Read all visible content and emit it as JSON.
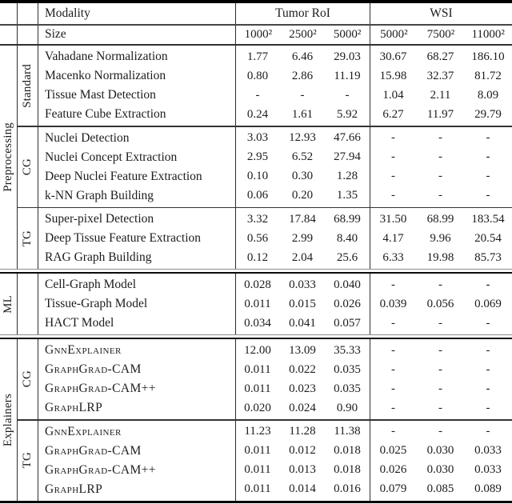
{
  "header": {
    "modality_label": "Modality",
    "size_label": "Size",
    "tumor_roi_label": "Tumor RoI",
    "wsi_label": "WSI",
    "sizes": [
      "1000²",
      "2500²",
      "5000²",
      "5000²",
      "7500²",
      "11000²"
    ]
  },
  "sections": [
    {
      "name": "Preprocessing",
      "bands": [
        {
          "group": "Standard",
          "rows": [
            {
              "label": "Vahadane Normalization",
              "values": [
                "1.77",
                "6.46",
                "29.03",
                "30.67",
                "68.27",
                "186.10"
              ]
            },
            {
              "label": "Macenko Normalization",
              "values": [
                "0.80",
                "2.86",
                "11.19",
                "15.98",
                "32.37",
                "81.72"
              ]
            },
            {
              "label": "Tissue Mast Detection",
              "values": [
                "-",
                "-",
                "-",
                "1.04",
                "2.11",
                "8.09"
              ]
            },
            {
              "label": "Feature Cube Extraction",
              "values": [
                "0.24",
                "1.61",
                "5.92",
                "6.27",
                "11.97",
                "29.79"
              ]
            }
          ]
        },
        {
          "group": "CG",
          "rows": [
            {
              "label": "Nuclei Detection",
              "values": [
                "3.03",
                "12.93",
                "47.66",
                "-",
                "-",
                "-"
              ]
            },
            {
              "label": "Nuclei Concept Extraction",
              "values": [
                "2.95",
                "6.52",
                "27.94",
                "-",
                "-",
                "-"
              ]
            },
            {
              "label": "Deep Nuclei Feature Extraction",
              "values": [
                "0.10",
                "0.30",
                "1.28",
                "-",
                "-",
                "-"
              ]
            },
            {
              "label": "k-NN Graph Building",
              "values": [
                "0.06",
                "0.20",
                "1.35",
                "-",
                "-",
                "-"
              ]
            }
          ]
        },
        {
          "group": "TG",
          "rows": [
            {
              "label": "Super-pixel Detection",
              "values": [
                "3.32",
                "17.84",
                "68.99",
                "31.50",
                "68.99",
                "183.54"
              ]
            },
            {
              "label": "Deep Tissue Feature Extraction",
              "values": [
                "0.56",
                "2.99",
                "8.40",
                "4.17",
                "9.96",
                "20.54"
              ]
            },
            {
              "label": "RAG Graph Building",
              "values": [
                "0.12",
                "2.04",
                "25.6",
                "6.33",
                "19.98",
                "85.73"
              ]
            }
          ]
        }
      ]
    },
    {
      "name": "ML",
      "bands": [
        {
          "group": "",
          "rows": [
            {
              "label": "Cell-Graph Model",
              "values": [
                "0.028",
                "0.033",
                "0.040",
                "-",
                "-",
                "-"
              ]
            },
            {
              "label": "Tissue-Graph Model",
              "values": [
                "0.011",
                "0.015",
                "0.026",
                "0.039",
                "0.056",
                "0.069"
              ]
            },
            {
              "label": "HACT Model",
              "values": [
                "0.034",
                "0.041",
                "0.057",
                "-",
                "-",
                "-"
              ]
            }
          ]
        }
      ]
    },
    {
      "name": "Explainers",
      "bands": [
        {
          "group": "CG",
          "smallcaps": true,
          "rows": [
            {
              "label": "GnnExplainer",
              "values": [
                "12.00",
                "13.09",
                "35.33",
                "-",
                "-",
                "-"
              ]
            },
            {
              "label": "GraphGrad-CAM",
              "values": [
                "0.011",
                "0.022",
                "0.035",
                "-",
                "-",
                "-"
              ]
            },
            {
              "label": "GraphGrad-CAM++",
              "values": [
                "0.011",
                "0.023",
                "0.035",
                "-",
                "-",
                "-"
              ]
            },
            {
              "label": "GraphLRP",
              "values": [
                "0.020",
                "0.024",
                "0.90",
                "-",
                "-",
                "-"
              ]
            }
          ]
        },
        {
          "group": "TG",
          "smallcaps": true,
          "rows": [
            {
              "label": "GnnExplainer",
              "values": [
                "11.23",
                "11.28",
                "11.38",
                "-",
                "-",
                "-"
              ]
            },
            {
              "label": "GraphGrad-CAM",
              "values": [
                "0.011",
                "0.012",
                "0.018",
                "0.025",
                "0.030",
                "0.033"
              ]
            },
            {
              "label": "GraphGrad-CAM++",
              "values": [
                "0.011",
                "0.013",
                "0.018",
                "0.026",
                "0.030",
                "0.033"
              ]
            },
            {
              "label": "GraphLRP",
              "values": [
                "0.011",
                "0.014",
                "0.016",
                "0.079",
                "0.085",
                "0.089"
              ]
            }
          ]
        }
      ]
    }
  ]
}
